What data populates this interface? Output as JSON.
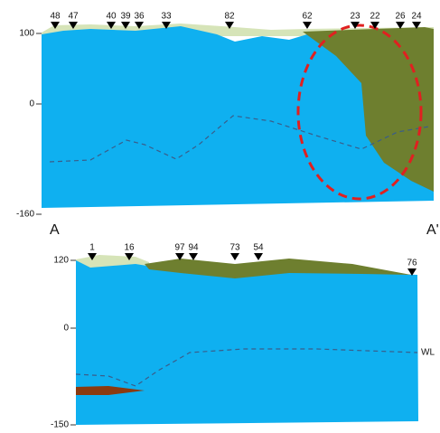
{
  "sections": [
    {
      "axis_labels": [
        "100",
        "0",
        "-160"
      ],
      "wells": [
        "48",
        "47",
        "40",
        "39",
        "36",
        "33",
        "82",
        "62",
        "23",
        "22",
        "26",
        "24"
      ],
      "end_labels": [
        "A",
        "A'"
      ]
    },
    {
      "axis_labels": [
        "120",
        "0",
        "-150"
      ],
      "wells": [
        "1",
        "16",
        "97",
        "94",
        "73",
        "54",
        "76"
      ],
      "water_level_label": "WL"
    }
  ]
}
